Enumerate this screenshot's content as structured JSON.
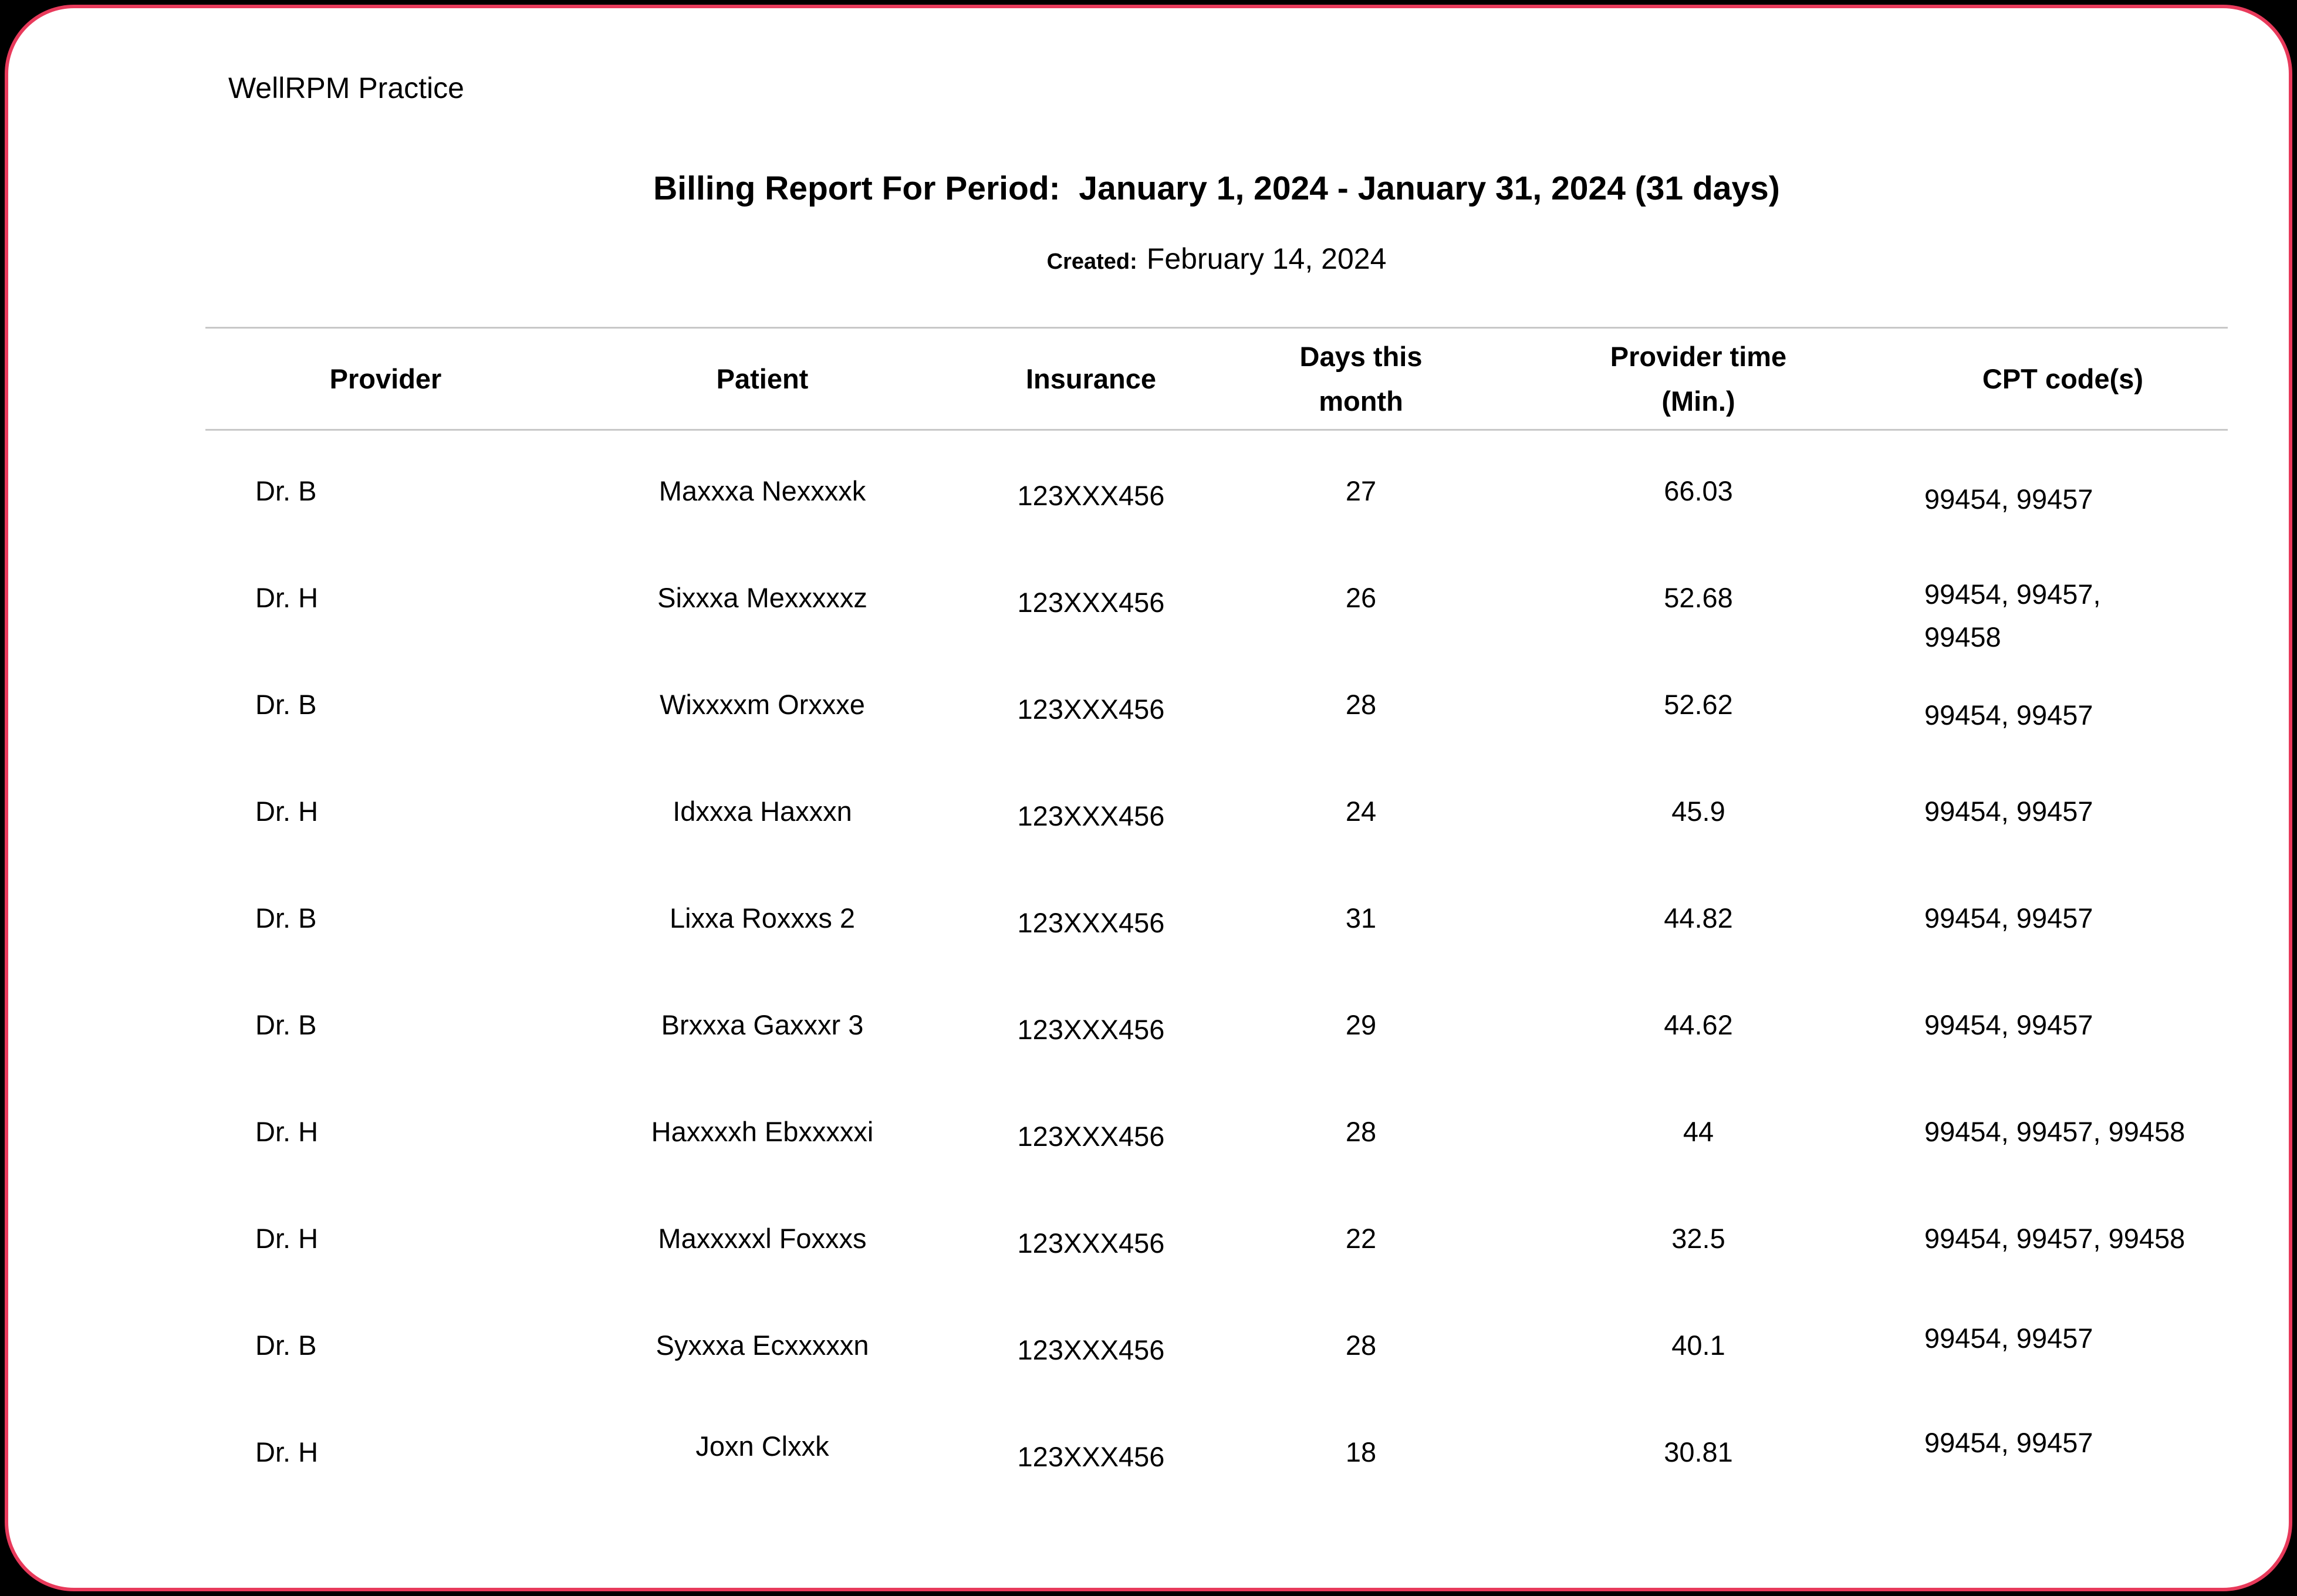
{
  "colors": {
    "page_background": "#000000",
    "card_background": "#ffffff",
    "card_border": "#e83a5b",
    "table_rule": "#c8c8c8",
    "text": "#000000"
  },
  "header": {
    "practice_name": "WellRPM Practice",
    "report_title": "Billing Report For Period:  January 1, 2024 - January 31, 2024 (31 days)",
    "created_label": "Created:",
    "created_date": "February 14, 2024"
  },
  "table": {
    "columns": [
      "Provider",
      "Patient",
      "Insurance",
      "Days this\nmonth",
      "Provider time\n(Min.)",
      "CPT code(s)"
    ],
    "rows": [
      {
        "provider": "Dr. B",
        "patient": "Maxxxa Nexxxxk",
        "insurance": "123XXX456",
        "days": "27",
        "minutes": "66.03",
        "cpt": "99454, 99457"
      },
      {
        "provider": "Dr. H",
        "patient": "Sixxxa Mexxxxxz",
        "insurance": "123XXX456",
        "days": "26",
        "minutes": "52.68",
        "cpt": "99454, 99457,\n99458"
      },
      {
        "provider": "Dr. B",
        "patient": "Wixxxxm Orxxxe",
        "insurance": "123XXX456",
        "days": "28",
        "minutes": "52.62",
        "cpt": "99454, 99457"
      },
      {
        "provider": "Dr. H",
        "patient": "Idxxxa Haxxxn",
        "insurance": "123XXX456",
        "days": "24",
        "minutes": "45.9",
        "cpt": "99454, 99457"
      },
      {
        "provider": "Dr. B",
        "patient": "Lixxa Roxxxs 2",
        "insurance": "123XXX456",
        "days": "31",
        "minutes": "44.82",
        "cpt": "99454, 99457"
      },
      {
        "provider": "Dr. B",
        "patient": "Brxxxa Gaxxxr 3",
        "insurance": "123XXX456",
        "days": "29",
        "minutes": "44.62",
        "cpt": "99454, 99457"
      },
      {
        "provider": "Dr. H",
        "patient": "Haxxxxh Ebxxxxxi",
        "insurance": "123XXX456",
        "days": "28",
        "minutes": "44",
        "cpt": "99454, 99457, 99458"
      },
      {
        "provider": "Dr. H",
        "patient": "Maxxxxxl Foxxxs",
        "insurance": "123XXX456",
        "days": "22",
        "minutes": "32.5",
        "cpt": "99454, 99457, 99458"
      },
      {
        "provider": "Dr. B",
        "patient": "Syxxxa Ecxxxxxn",
        "insurance": "123XXX456",
        "days": "28",
        "minutes": "40.1",
        "cpt": "99454, 99457"
      },
      {
        "provider": "Dr. H",
        "patient": "Joxn Clxxk",
        "insurance": "123XXX456",
        "days": "18",
        "minutes": "30.81",
        "cpt": "99454, 99457"
      }
    ]
  }
}
